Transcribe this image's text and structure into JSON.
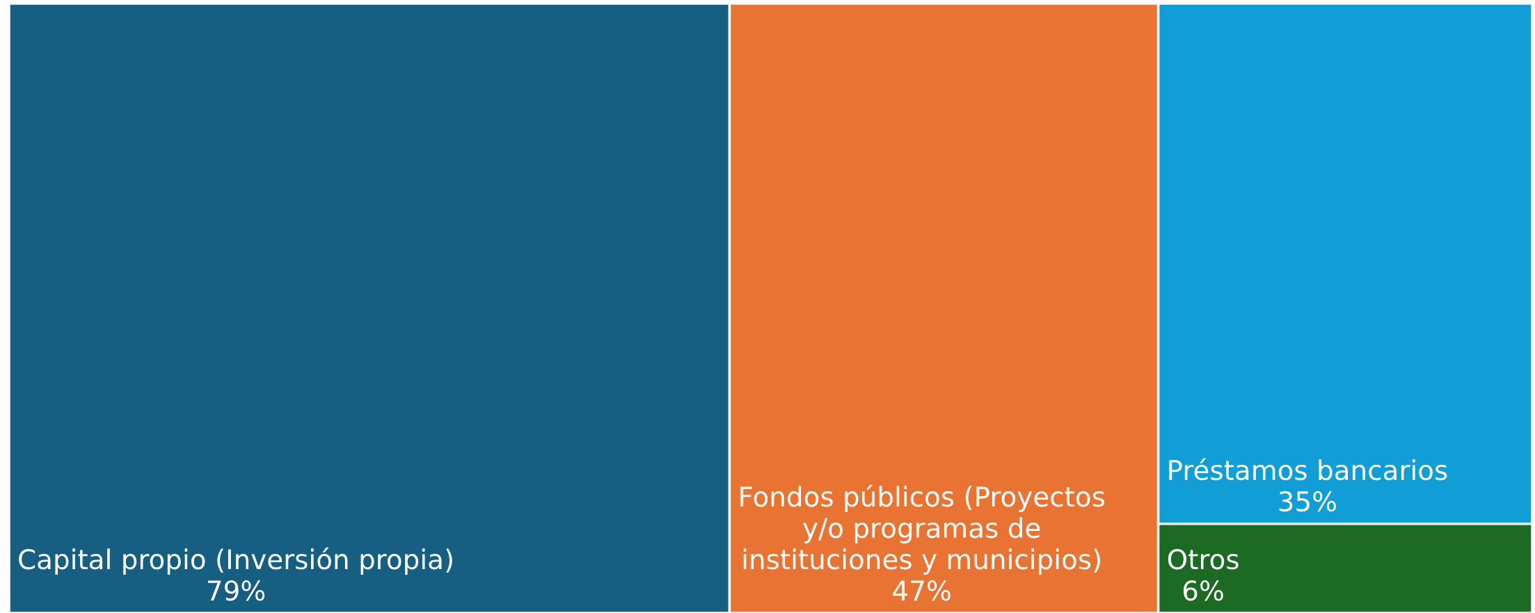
{
  "chart_data": {
    "type": "other",
    "categories": [
      "Capital propio (Inversión propia)",
      "Fondos públicos (Proyectos y/o programas de instituciones y municipios)",
      "Préstamos bancarios",
      "Otros"
    ],
    "values": [
      79,
      47,
      35,
      6
    ],
    "value_labels": [
      "79%",
      "47%",
      "35%",
      "6%"
    ],
    "colors": [
      "#165f82",
      "#e87333",
      "#119ed6",
      "#1c6a23"
    ]
  }
}
